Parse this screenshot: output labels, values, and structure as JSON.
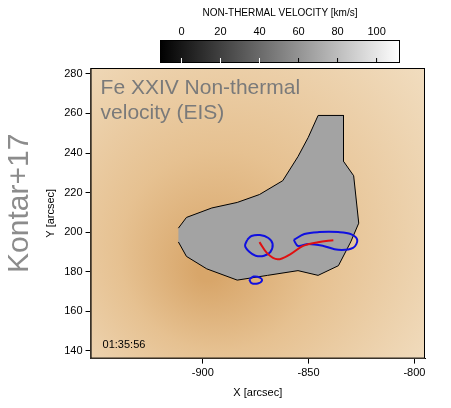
{
  "chart_data": {
    "type": "map",
    "title": "Fe XXIV Non-thermal velocity (EIS)",
    "side_label": "Kontar+17",
    "timestamp": "01:35:56",
    "x_label": "X [arcsec]",
    "y_label": "Y [arcsec]",
    "xlim": [
      -953,
      -795
    ],
    "xticks": [
      -900,
      -850,
      -800
    ],
    "ylim": [
      136,
      283
    ],
    "yticks": [
      140,
      160,
      180,
      200,
      220,
      240,
      260,
      280
    ],
    "colorbar": {
      "label": "NON-THERMAL VELOCITY [km/s]",
      "range": [
        -11,
        112
      ],
      "ticks": [
        0,
        20,
        40,
        60,
        80,
        100
      ]
    },
    "series": [
      {
        "type": "area",
        "color": "#a3a3a3",
        "x": [
          -911.5,
          -907.7,
          -895.7,
          -883.7,
          -873.2,
          -862.2,
          -855.0,
          -850.2,
          -845.5,
          -833.5,
          -833.5,
          -828.7,
          -826.3,
          -830.1,
          -835.9,
          -845.5,
          -855.0,
          -869.4,
          -883.7,
          -898.1,
          -907.7,
          -911.5
        ],
        "y": [
          202.0,
          207.4,
          212.2,
          215.0,
          219.0,
          226.0,
          238.2,
          247.8,
          259.0,
          259.0,
          235.8,
          228.5,
          204.5,
          195.0,
          183.0,
          178.1,
          180.5,
          178.1,
          175.7,
          181.4,
          187.7,
          195.0
        ]
      },
      {
        "type": "line",
        "color": "#e01010",
        "x": [
          -873.2,
          -869.4,
          -864.6,
          -858.9,
          -852.6,
          -845.5,
          -838.3
        ],
        "y": [
          194.9,
          189.1,
          186.2,
          188.6,
          193.0,
          194.9,
          195.9
        ]
      },
      {
        "type": "line",
        "color": "#1010e0",
        "x": [
          -879,
          -877,
          -873,
          -869,
          -867,
          -868,
          -871,
          -875,
          -878,
          -880,
          -879
        ],
        "y": [
          196,
          198,
          198.5,
          197,
          194,
          190,
          188,
          188,
          190,
          193,
          196
        ]
      },
      {
        "type": "line",
        "color": "#1010e0",
        "x": [
          -857,
          -852,
          -845,
          -836,
          -830,
          -827,
          -829,
          -836,
          -843,
          -850,
          -855,
          -857
        ],
        "y": [
          196,
          199,
          200,
          200,
          199,
          196,
          192,
          191,
          193,
          194,
          193,
          196
        ]
      },
      {
        "type": "line",
        "color": "#1010e0",
        "x": [
          -878,
          -876,
          -873,
          -872,
          -874,
          -877,
          -878
        ],
        "y": [
          176,
          177.5,
          177,
          175.5,
          174,
          174.2,
          176
        ]
      }
    ]
  }
}
